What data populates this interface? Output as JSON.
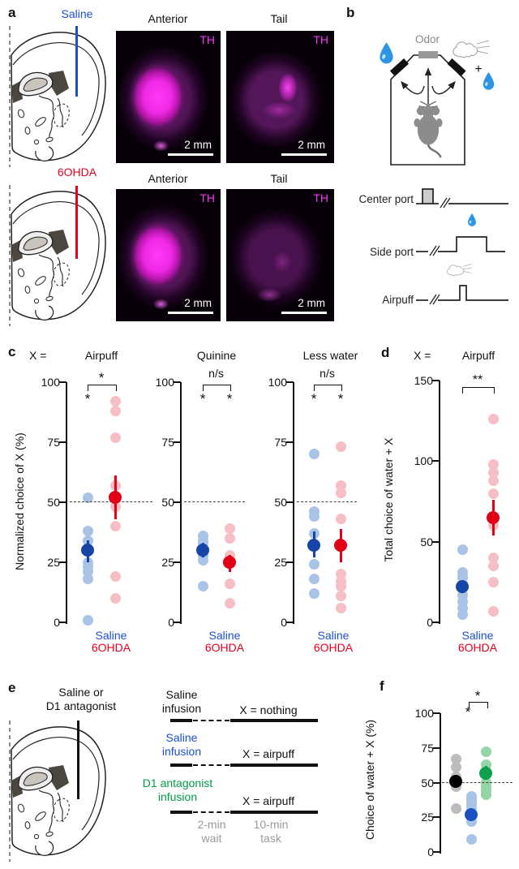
{
  "figure": {
    "panel_a": {
      "label": "a",
      "saline": "Saline",
      "sixohda": "6OHDA",
      "rows": [
        {
          "col1_title": "Anterior",
          "col2_title": "Tail",
          "stain": "TH",
          "scale": "2 mm"
        },
        {
          "col1_title": "Anterior",
          "col2_title": "Tail",
          "stain": "TH",
          "scale": "2 mm"
        }
      ]
    },
    "panel_b": {
      "label": "b",
      "odor": "Odor",
      "plus": "+",
      "traces": [
        {
          "label": "Center port"
        },
        {
          "label": "Side port"
        },
        {
          "label": "Airpuff"
        }
      ]
    },
    "panel_c": {
      "label": "c",
      "x_eq": "X ="
    },
    "panel_d": {
      "label": "d",
      "x_eq": "X ="
    },
    "panel_e": {
      "label": "e",
      "injection_line1": "Saline or",
      "injection_line2": "D1 antagonist",
      "rows": [
        {
          "name_line1": "Saline",
          "name_line2": "infusion",
          "task": "X = nothing"
        },
        {
          "name_line1": "Saline",
          "name_line2": "infusion",
          "task": "X = airpuff"
        },
        {
          "name_line1": "D1 antagonist",
          "name_line2": "infusion",
          "task": "X = airpuff"
        }
      ],
      "wait_line1": "2-min",
      "wait_line2": "wait",
      "task_line1": "10-min",
      "task_line2": "task"
    },
    "panel_f": {
      "label": "f"
    }
  },
  "colors": {
    "saline_blue": "#1b4fd0",
    "sixohda_red": "#e6001e",
    "d1_green": "#009c46",
    "gray_text": "#9a9a9a",
    "magenta": "#ef3cef",
    "light_blue_dot": "#a9c3e6",
    "dark_blue_dot": "#1645a8",
    "light_red_dot": "#f5bfc3",
    "dark_red_dot": "#e20017",
    "gray_dot": "#bcbcbc",
    "black_dot": "#000000",
    "light_green_dot": "#93d5a5",
    "dark_green_dot": "#0ea04c"
  },
  "chart_data": [
    {
      "id": "c1",
      "type": "scatter",
      "title": "Airpuff",
      "ylabel": "Normalized choice of X (%)",
      "ylim": [
        0,
        100
      ],
      "yticks": [
        0,
        25,
        50,
        75,
        100
      ],
      "dashed_at": 50,
      "groups": [
        {
          "name": "Saline",
          "fill": "#a9c3e6",
          "mean_fill": "#1645a8",
          "points": [
            52,
            38,
            34,
            25,
            23,
            21,
            18,
            1
          ],
          "mean": 30,
          "err": [
            25,
            34
          ]
        },
        {
          "name": "6OHDA",
          "fill": "#f5bfc3",
          "mean_fill": "#e20017",
          "points": [
            92,
            88,
            77,
            57,
            48,
            40,
            19,
            10
          ],
          "mean": 52,
          "err": [
            43,
            61
          ]
        }
      ],
      "sig": {
        "group_stars": [
          "*",
          null
        ],
        "bracket_label": "*"
      },
      "x_labels": [
        "Saline",
        "6OHDA"
      ]
    },
    {
      "id": "c2",
      "type": "scatter",
      "title": "Quinine",
      "ylim": [
        0,
        100
      ],
      "yticks": [
        0,
        25,
        50,
        75,
        100
      ],
      "dashed_at": 50,
      "groups": [
        {
          "name": "Saline",
          "fill": "#a9c3e6",
          "mean_fill": "#1645a8",
          "points": [
            36,
            34,
            33,
            28,
            26,
            15
          ],
          "mean": 30,
          "err": [
            27,
            33
          ]
        },
        {
          "name": "6OHDA",
          "fill": "#f5bfc3",
          "mean_fill": "#e20017",
          "points": [
            39,
            35,
            28,
            16,
            8
          ],
          "mean": 25,
          "err": [
            21,
            28
          ]
        }
      ],
      "sig": {
        "group_stars": [
          "*",
          "*"
        ],
        "bracket_label": "n/s"
      },
      "x_labels": [
        "Saline",
        "6OHDA"
      ]
    },
    {
      "id": "c3",
      "type": "scatter",
      "title": "Less water",
      "ylim": [
        0,
        100
      ],
      "yticks": [
        0,
        25,
        50,
        75,
        100
      ],
      "dashed_at": 50,
      "groups": [
        {
          "name": "Saline",
          "fill": "#a9c3e6",
          "mean_fill": "#1645a8",
          "points": [
            70,
            46,
            44,
            37,
            24,
            18,
            12
          ],
          "mean": 32,
          "err": [
            27,
            38
          ]
        },
        {
          "name": "6OHDA",
          "fill": "#f5bfc3",
          "mean_fill": "#e20017",
          "points": [
            73,
            57,
            54,
            43,
            20,
            17,
            15,
            11,
            6
          ],
          "mean": 32,
          "err": [
            25,
            39
          ]
        }
      ],
      "sig": {
        "group_stars": [
          "*",
          "*"
        ],
        "bracket_label": "n/s"
      },
      "x_labels": [
        "Saline",
        "6OHDA"
      ]
    },
    {
      "id": "d",
      "type": "scatter",
      "title": "Airpuff",
      "ylabel": "Total choice of water + X",
      "ylim": [
        0,
        150
      ],
      "yticks": [
        0,
        50,
        100,
        150
      ],
      "dashed_at": null,
      "groups": [
        {
          "name": "Saline",
          "fill": "#a9c3e6",
          "mean_fill": "#1645a8",
          "points": [
            45,
            31,
            28,
            24,
            17,
            13,
            9,
            5
          ],
          "mean": 22,
          "err": [
            18,
            26
          ]
        },
        {
          "name": "6OHDA",
          "fill": "#f5bfc3",
          "mean_fill": "#e20017",
          "points": [
            126,
            98,
            93,
            88,
            80,
            60,
            40,
            35,
            25,
            7
          ],
          "mean": 65,
          "err": [
            54,
            76
          ]
        }
      ],
      "sig": {
        "bracket_label": "**"
      },
      "x_labels": [
        "Saline",
        "6OHDA"
      ]
    },
    {
      "id": "f",
      "type": "scatter",
      "ylabel": "Choice of water + X (%)",
      "ylim": [
        0,
        100
      ],
      "yticks": [
        0,
        25,
        50,
        75,
        100
      ],
      "dashed_at": 50,
      "groups": [
        {
          "name": "saline-nothing",
          "fill": "#bcbcbc",
          "mean_fill": "#000000",
          "points": [
            67,
            61,
            54,
            47,
            31
          ],
          "mean": 51,
          "err": [
            47,
            55
          ]
        },
        {
          "name": "saline-airpuff",
          "fill": "#a9c3e6",
          "mean_fill": "#1b50c0",
          "points": [
            40,
            38,
            36,
            34,
            32,
            22,
            9
          ],
          "mean": 27,
          "err": [
            24,
            30
          ]
        },
        {
          "name": "d1-airpuff",
          "fill": "#93d5a5",
          "mean_fill": "#0ea04c",
          "points": [
            72,
            63,
            50,
            47,
            44,
            41
          ],
          "mean": 57,
          "err": [
            52,
            62
          ]
        }
      ],
      "sig": {
        "left_star": "*",
        "bracket_label": "*"
      },
      "x_labels": []
    }
  ]
}
